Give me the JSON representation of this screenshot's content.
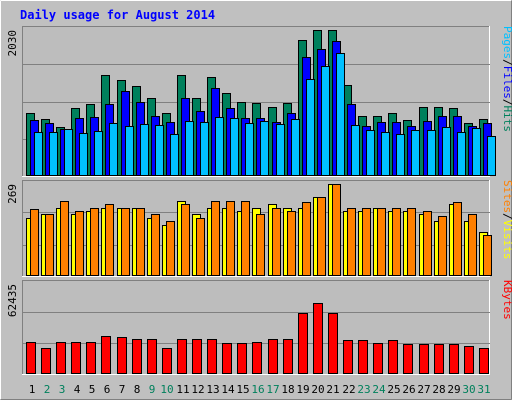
{
  "chart_data": {
    "type": "bar",
    "title": "Daily usage for August 2014",
    "colors": {
      "background": "#c0c0c0",
      "panel": "#bdbdbd",
      "title": "#0000ff",
      "hits": "#00805c",
      "files": "#0000ff",
      "pages": "#00c0ff",
      "visits": "#ffff00",
      "sites": "#ff8000",
      "kbytes": "#ff0000",
      "weekend_tick": "#00805c",
      "weekday_tick": "#000000"
    },
    "categories": [
      "1",
      "2",
      "3",
      "4",
      "5",
      "6",
      "7",
      "8",
      "9",
      "10",
      "11",
      "12",
      "13",
      "14",
      "15",
      "16",
      "17",
      "18",
      "19",
      "20",
      "21",
      "22",
      "23",
      "24",
      "25",
      "26",
      "27",
      "28",
      "29",
      "30",
      "31"
    ],
    "weekend_days": [
      "2",
      "3",
      "9",
      "10",
      "16",
      "17",
      "23",
      "24",
      "30",
      "31"
    ],
    "panels": [
      {
        "id": "hits-files-pages",
        "max_label": "2030",
        "ymax": 2030,
        "legend": [
          {
            "text": "Hits",
            "color": "#00805c"
          },
          {
            "text": "Files",
            "color": "#0000ff"
          },
          {
            "text": "Pages",
            "color": "#00c0ff"
          }
        ],
        "series": [
          {
            "name": "Hits",
            "color": "#00805c",
            "values": [
              870,
              790,
              680,
              940,
              1000,
              1400,
              1340,
              1250,
              1080,
              880,
              1400,
              1080,
              1370,
              1150,
              1030,
              1020,
              960,
              1010,
              1890,
              2030,
              2030,
              1270,
              830,
              830,
              880,
              780,
              960,
              960,
              940,
              740,
              790
            ]
          },
          {
            "name": "Files",
            "color": "#0000ff",
            "values": [
              780,
              730,
              650,
              810,
              820,
              1000,
              1180,
              1030,
              830,
              750,
              1090,
              900,
              1220,
              950,
              800,
              810,
              750,
              880,
              1650,
              1760,
              1880,
              1000,
              700,
              750,
              750,
              700,
              770,
              840,
              840,
              700,
              740
            ]
          },
          {
            "name": "Pages",
            "color": "#00c0ff",
            "values": [
              610,
              610,
              650,
              600,
              620,
              730,
              700,
              720,
              710,
              580,
              770,
              750,
              820,
              800,
              740,
              760,
              720,
              790,
              1350,
              1530,
              1710,
              710,
              640,
              610,
              580,
              640,
              640,
              680,
              610,
              670,
              560
            ]
          }
        ]
      },
      {
        "id": "visits-sites",
        "max_label": "269",
        "ymax": 269,
        "legend": [
          {
            "text": "Visits",
            "color": "#ffff00"
          },
          {
            "text": "Sites",
            "color": "#ff8000"
          }
        ],
        "series": [
          {
            "name": "Visits",
            "color": "#ffff00",
            "values": [
              170,
              180,
              200,
              180,
              190,
              200,
              200,
              200,
              170,
              150,
              220,
              180,
              200,
              200,
              190,
              200,
              210,
              200,
              200,
              230,
              269,
              190,
              190,
              200,
              190,
              190,
              180,
              160,
              210,
              160,
              130
            ]
          },
          {
            "name": "Sites",
            "color": "#ff8000",
            "values": [
              195,
              180,
              220,
              190,
              200,
              210,
              200,
              200,
              180,
              160,
              210,
              170,
              220,
              220,
              220,
              180,
              200,
              190,
              215,
              230,
              269,
              200,
              200,
              200,
              200,
              200,
              190,
              175,
              215,
              180,
              120
            ]
          }
        ]
      },
      {
        "id": "kbytes",
        "max_label": "62435",
        "ymax": 62435,
        "legend": [
          {
            "text": "KBytes",
            "color": "#ff0000"
          }
        ],
        "series": [
          {
            "name": "KBytes",
            "color": "#ff0000",
            "values": [
              22000,
              18000,
              22000,
              22500,
              22500,
              26500,
              26000,
              24500,
              24500,
              18000,
              24500,
              24000,
              24500,
              21500,
              21500,
              22000,
              24500,
              24500,
              42500,
              49000,
              42500,
              23500,
              23500,
              21500,
              23500,
              20500,
              20500,
              20500,
              21000,
              19500,
              18000
            ]
          }
        ]
      }
    ]
  }
}
